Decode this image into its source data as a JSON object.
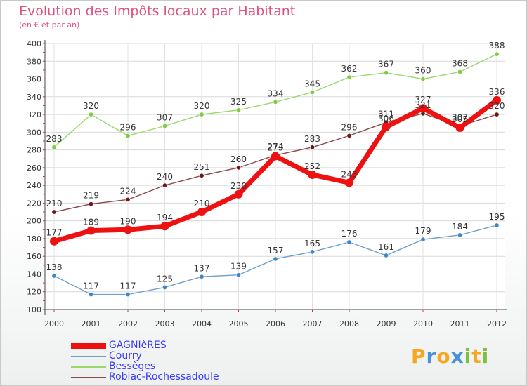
{
  "title": "Evolution des Impôts locaux par Habitant",
  "subtitle": "(en € et par an)",
  "logo": {
    "text": "Proxiti",
    "letters": [
      "P",
      "r",
      "o",
      "x",
      "i",
      "t",
      "i"
    ],
    "colors": [
      "#f5a623",
      "#4a90d9",
      "#f5a623",
      "#4a90d9",
      "#7bc043",
      "#f5a623",
      "#7bc043"
    ]
  },
  "chart_data": {
    "type": "line",
    "title": "Evolution des Impôts locaux par Habitant",
    "subtitle": "(en € et par an)",
    "xlabel": "",
    "ylabel": "",
    "x": [
      "2000",
      "2001",
      "2002",
      "2003",
      "2004",
      "2005",
      "2006",
      "2007",
      "2008",
      "2009",
      "2010",
      "2011",
      "2012"
    ],
    "ylim": [
      100,
      400
    ],
    "yticks": [
      100,
      120,
      140,
      160,
      180,
      200,
      220,
      240,
      260,
      280,
      300,
      320,
      340,
      360,
      380,
      400
    ],
    "grid": true,
    "legend": "bottom-left",
    "series": [
      {
        "name": "GAGNIèRES",
        "color": "#ee1111",
        "point_color": "#ee1111",
        "emphasis": true,
        "values": [
          177,
          189,
          190,
          194,
          210,
          230,
          273,
          252,
          243,
          306,
          327,
          305,
          336
        ]
      },
      {
        "name": "Courry",
        "color": "#6fa0cc",
        "point_color": "#3c86c8",
        "emphasis": false,
        "values": [
          138,
          117,
          117,
          125,
          137,
          139,
          157,
          165,
          176,
          161,
          179,
          184,
          195
        ]
      },
      {
        "name": "Bessèges",
        "color": "#9ad86a",
        "point_color": "#7ecb44",
        "emphasis": false,
        "values": [
          283,
          320,
          296,
          307,
          320,
          325,
          334,
          345,
          362,
          367,
          360,
          368,
          388
        ]
      },
      {
        "name": "Robiac-Rochessadoule",
        "color": "#8a4848",
        "point_color": "#6b1a1a",
        "emphasis": false,
        "values": [
          210,
          219,
          224,
          240,
          251,
          260,
          274,
          283,
          296,
          311,
          321,
          307,
          320
        ]
      }
    ]
  }
}
